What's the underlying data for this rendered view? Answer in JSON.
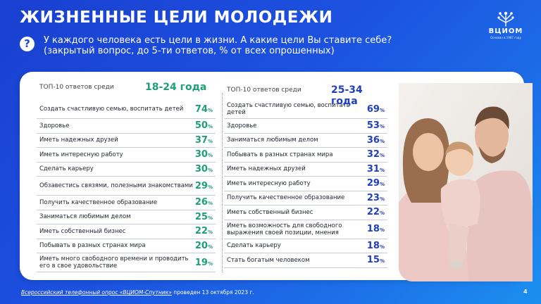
{
  "title": "ЖИЗНЕННЫЕ ЦЕЛИ МОЛОДЕЖИ",
  "question": {
    "icon": "question-icon",
    "line1": "У каждого человека есть цели в жизни. А какие цели Вы ставите себе?",
    "line2": "(закрытый вопрос, до 5-ти ответов, % от всех опрошенных)"
  },
  "logo": {
    "name": "ВЦИОМ",
    "sub": "Основан в 1987 году"
  },
  "percent_sign": "%",
  "left": {
    "prefix": "ТОП-10 ответов среди",
    "age": "18-24 года",
    "items": [
      {
        "label": "Создать счастливую семью, воспитать детей",
        "value": "74"
      },
      {
        "label": "Здоровье",
        "value": "50"
      },
      {
        "label": "Иметь надежных друзей",
        "value": "37"
      },
      {
        "label": "Иметь интересную работу",
        "value": "30"
      },
      {
        "label": "Сделать карьеру",
        "value": "30"
      },
      {
        "label": "Обзавестись связями, полезными знакомствами",
        "value": "29"
      },
      {
        "label": "Получить качественное образование",
        "value": "26"
      },
      {
        "label": "Заниматься любимым делом",
        "value": "25"
      },
      {
        "label": "Иметь собственный бизнес",
        "value": "22"
      },
      {
        "label": "Побывать в разных странах мира",
        "value": "20"
      },
      {
        "label": "Иметь много свободного времени и проводить его в свое удовольствие",
        "value": "19"
      }
    ]
  },
  "right": {
    "prefix": "ТОП-10 ответов среди",
    "age": "25-34 года",
    "items": [
      {
        "label": "Создать счастливую семью, воспитать детей",
        "value": "69"
      },
      {
        "label": "Здоровье",
        "value": "53"
      },
      {
        "label": "Заниматься любимым делом",
        "value": "36"
      },
      {
        "label": "Побывать в разных странах мира",
        "value": "32"
      },
      {
        "label": "Иметь надежных друзей",
        "value": "31"
      },
      {
        "label": "Иметь интересную работу",
        "value": "29"
      },
      {
        "label": "Получить качественное образование",
        "value": "23"
      },
      {
        "label": "Иметь собственный бизнес",
        "value": "22"
      },
      {
        "label": "Иметь возможность для свободного выражения своей позиции, мнения",
        "value": "18"
      },
      {
        "label": "Сделать карьеру",
        "value": "18"
      },
      {
        "label": "Стать богатым человеком",
        "value": "15"
      }
    ]
  },
  "footer": {
    "link": "Всероссийский телефонный опрос «ВЦИОМ-Спутник»",
    "rest": " проведен 13 октября 2023 г."
  },
  "page_number": "4",
  "colors": {
    "background": "#1c52e0",
    "green": "#1e9e78",
    "navy": "#1f3fbf"
  }
}
